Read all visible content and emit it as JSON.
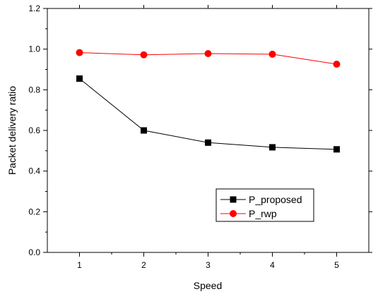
{
  "chart_data": {
    "type": "line",
    "xlabel": "Speed",
    "ylabel": "Packet delivery ratio",
    "x": [
      1,
      2,
      3,
      4,
      5
    ],
    "xlim": [
      0.5,
      5.5
    ],
    "ylim": [
      0.0,
      1.2
    ],
    "xticks": [
      "1",
      "2",
      "3",
      "4",
      "5"
    ],
    "yticks": [
      "0.0",
      "0.2",
      "0.4",
      "0.6",
      "0.8",
      "1.0",
      "1.2"
    ],
    "grid": false,
    "legend_position": "bottom-right",
    "series": [
      {
        "name": "P_proposed",
        "values": [
          0.855,
          0.6,
          0.54,
          0.517,
          0.507
        ],
        "color": "#000000",
        "marker": "square"
      },
      {
        "name": "P_rwp",
        "values": [
          0.983,
          0.972,
          0.978,
          0.975,
          0.926
        ],
        "color": "#ff0000",
        "marker": "circle"
      }
    ]
  }
}
